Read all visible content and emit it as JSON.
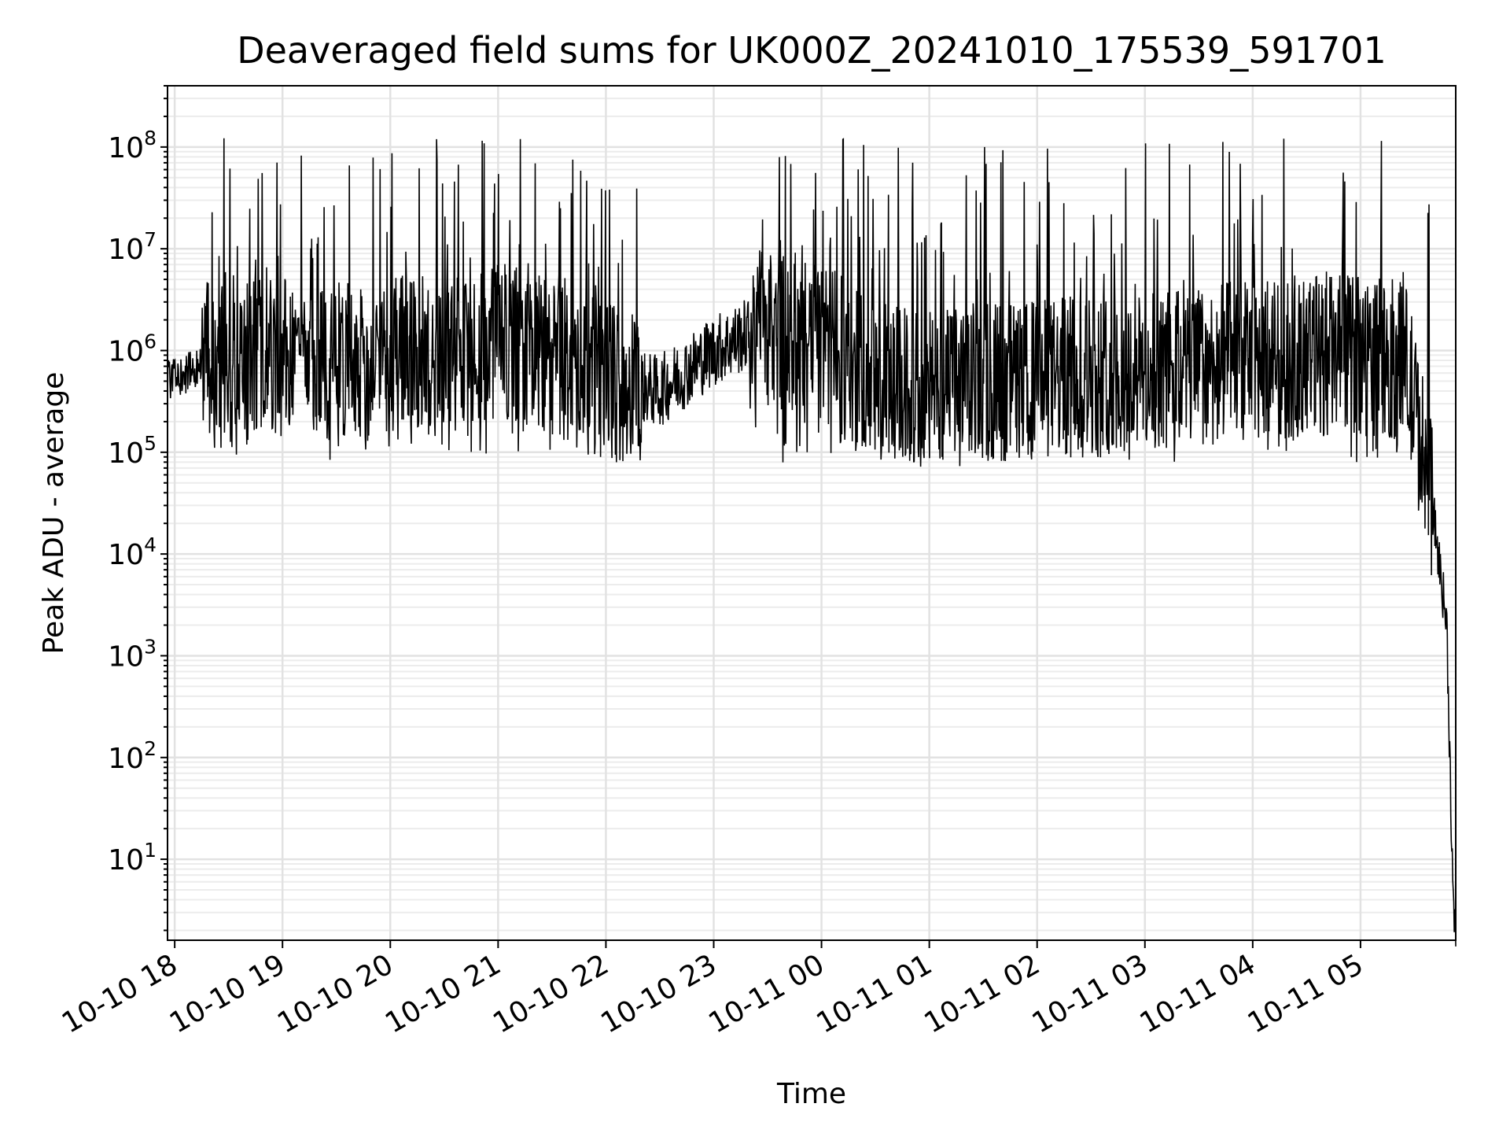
{
  "chart_data": {
    "type": "line",
    "title": "Deaveraged field sums for UK000Z_20241010_175539_591701",
    "xlabel": "Time",
    "ylabel": "Peak ADU - average",
    "yscale": "log",
    "ylim": [
      1.6,
      400000000
    ],
    "xlim": [
      "2024-10-10 17:56",
      "2024-10-11 05:53"
    ],
    "grid": true,
    "color": "#000000",
    "x_ticks": [
      "10-10 18",
      "10-10 19",
      "10-10 20",
      "10-10 21",
      "10-10 22",
      "10-10 23",
      "10-11 00",
      "10-11 01",
      "10-11 02",
      "10-11 03",
      "10-11 04",
      "10-11 05"
    ],
    "y_ticks": [
      {
        "base": "10",
        "exp": "1"
      },
      {
        "base": "10",
        "exp": "2"
      },
      {
        "base": "10",
        "exp": "3"
      },
      {
        "base": "10",
        "exp": "4"
      },
      {
        "base": "10",
        "exp": "5"
      },
      {
        "base": "10",
        "exp": "6"
      },
      {
        "base": "10",
        "exp": "7"
      },
      {
        "base": "10",
        "exp": "8"
      }
    ],
    "series": [
      {
        "name": "",
        "x": [
          "2024-10-10 17:56",
          "2024-10-10 18:15",
          "2024-10-10 18:30",
          "2024-10-10 19:00",
          "2024-10-10 19:30",
          "2024-10-10 20:00",
          "2024-10-10 20:30",
          "2024-10-10 21:00",
          "2024-10-10 21:30",
          "2024-10-10 22:00",
          "2024-10-10 22:30",
          "2024-10-10 23:00",
          "2024-10-10 23:30",
          "2024-10-11 00:00",
          "2024-10-11 00:30",
          "2024-10-11 01:00",
          "2024-10-11 01:30",
          "2024-10-11 02:00",
          "2024-10-11 02:30",
          "2024-10-11 03:00",
          "2024-10-11 03:30",
          "2024-10-11 04:00",
          "2024-10-11 04:30",
          "2024-10-11 05:00",
          "2024-10-11 05:25",
          "2024-10-11 05:40",
          "2024-10-11 05:48",
          "2024-10-11 05:52"
        ],
        "y": [
          500000,
          700000,
          1000000,
          900000,
          800000,
          800000,
          900000,
          1200000,
          800000,
          500000,
          400000,
          1000000,
          1800000,
          1200000,
          500000,
          400000,
          500000,
          500000,
          600000,
          600000,
          700000,
          800000,
          900000,
          900000,
          800000,
          30000,
          2000,
          2
        ]
      }
    ]
  }
}
